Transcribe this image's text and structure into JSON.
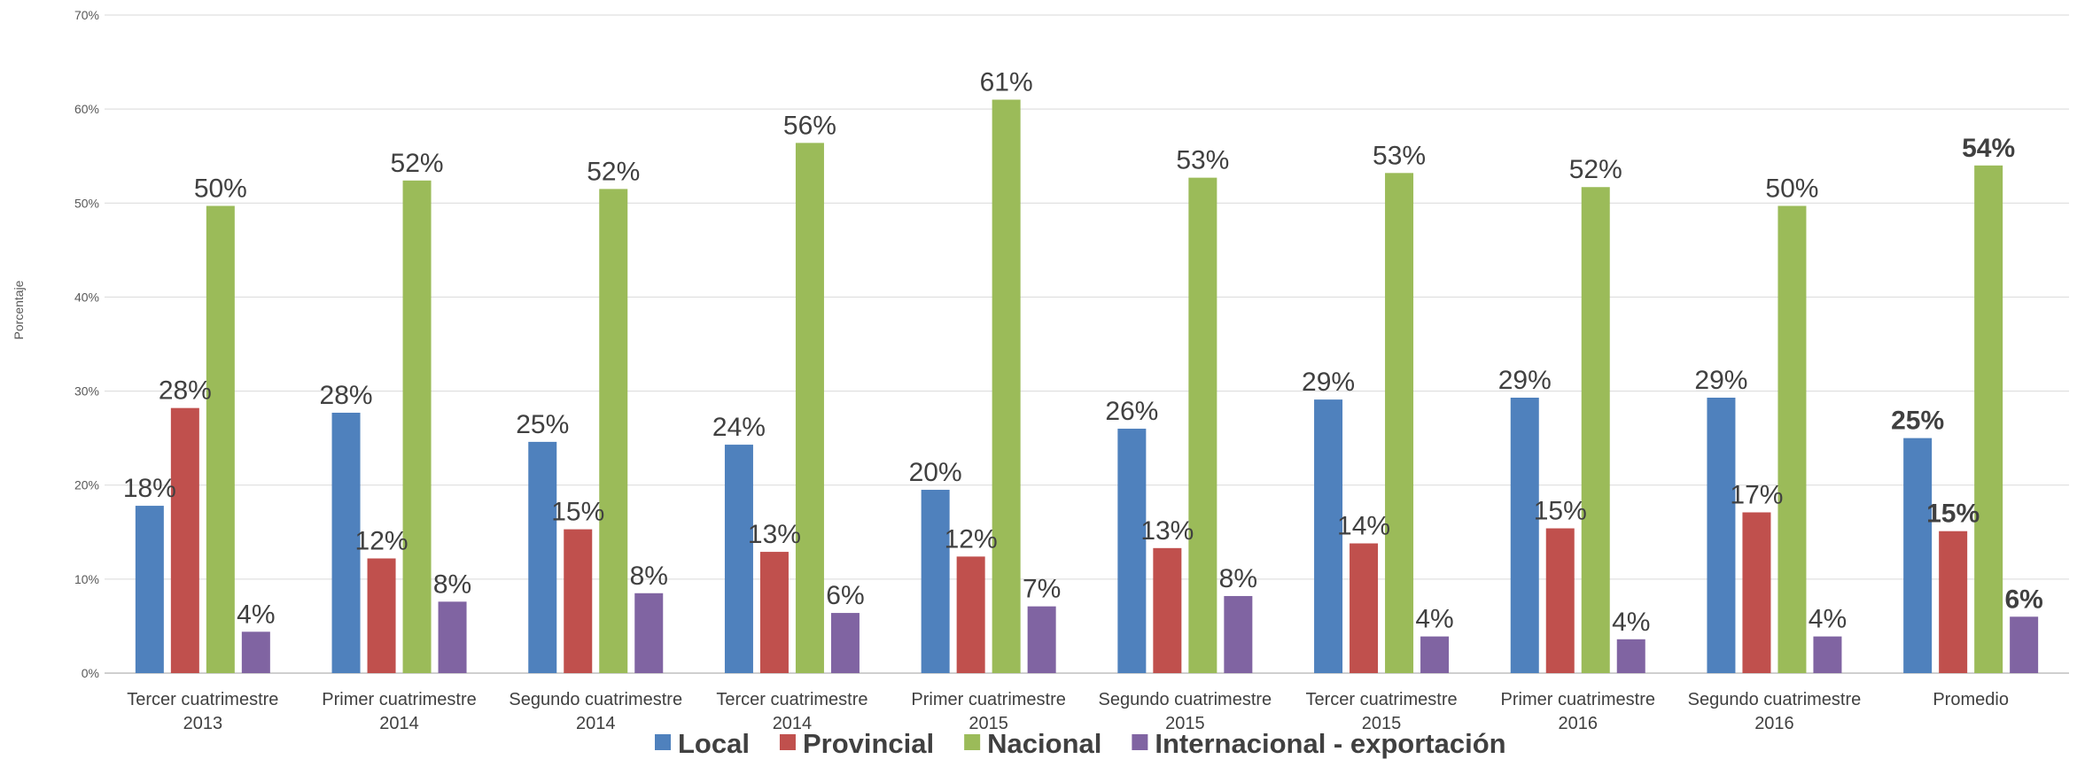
{
  "chart_data": {
    "type": "bar",
    "ylabel": "Porcentaje",
    "ylim": [
      0,
      70
    ],
    "ytick_step": 10,
    "ytick_suffix": "%",
    "grid": true,
    "legend_position": "bottom",
    "categories": [
      [
        "Tercer cuatrimestre",
        "2013"
      ],
      [
        "Primer cuatrimestre",
        "2014"
      ],
      [
        "Segundo cuatrimestre",
        "2014"
      ],
      [
        "Tercer cuatrimestre",
        "2014"
      ],
      [
        "Primer cuatrimestre",
        "2015"
      ],
      [
        "Segundo cuatrimestre",
        "2015"
      ],
      [
        "Tercer cuatrimestre",
        "2015"
      ],
      [
        "Primer cuatrimestre",
        "2016"
      ],
      [
        "Segundo cuatrimestre",
        "2016"
      ],
      [
        "Promedio"
      ]
    ],
    "series": [
      {
        "name": "Local",
        "color": "#4f81bd",
        "values": [
          17.8,
          27.7,
          24.6,
          24.3,
          19.5,
          26.0,
          29.1,
          29.3,
          29.3,
          25.0
        ],
        "labels": [
          "18%",
          "28%",
          "25%",
          "24%",
          "20%",
          "26%",
          "29%",
          "29%",
          "29%",
          "25%"
        ]
      },
      {
        "name": "Provincial",
        "color": "#c0504d",
        "values": [
          28.2,
          12.2,
          15.3,
          12.9,
          12.4,
          13.3,
          13.8,
          15.4,
          17.1,
          15.1
        ],
        "labels": [
          "28%",
          "12%",
          "15%",
          "13%",
          "12%",
          "13%",
          "14%",
          "15%",
          "17%",
          "15%"
        ]
      },
      {
        "name": "Nacional",
        "color": "#9bbb59",
        "values": [
          49.7,
          52.4,
          51.5,
          56.4,
          61.0,
          52.7,
          53.2,
          51.7,
          49.7,
          54.0
        ],
        "labels": [
          "50%",
          "52%",
          "52%",
          "56%",
          "61%",
          "53%",
          "53%",
          "52%",
          "50%",
          "54%"
        ]
      },
      {
        "name": "Internacional - exportación",
        "color": "#8064a2",
        "values": [
          4.4,
          7.6,
          8.5,
          6.4,
          7.1,
          8.2,
          3.9,
          3.6,
          3.9,
          6.0
        ],
        "labels": [
          "4%",
          "8%",
          "8%",
          "6%",
          "7%",
          "8%",
          "4%",
          "4%",
          "4%",
          "6%"
        ]
      }
    ],
    "bold_label_category": 9
  }
}
